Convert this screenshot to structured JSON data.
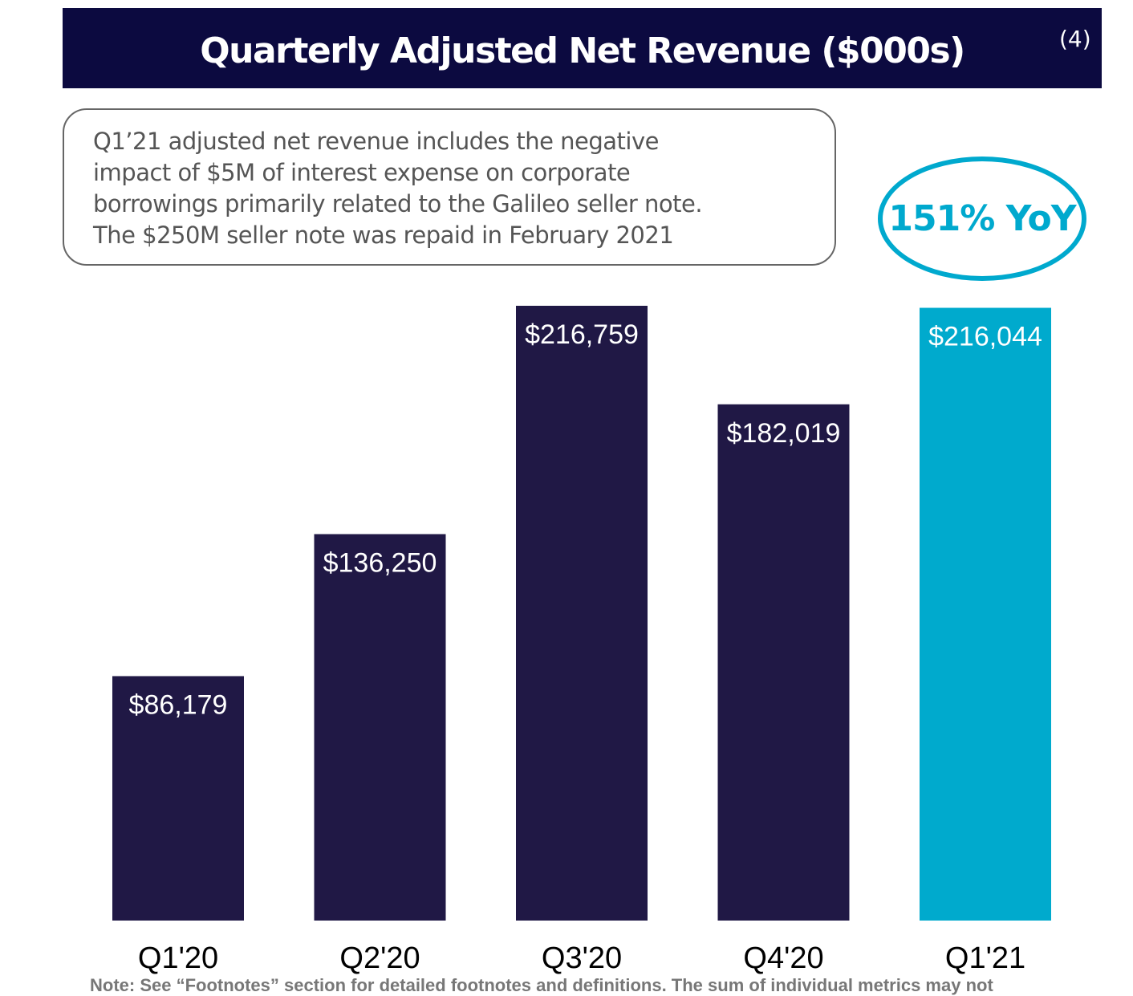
{
  "header": {
    "title": "Quarterly Adjusted Net Revenue ($000s)",
    "superscript": "(4)"
  },
  "callout": {
    "lines": [
      "Q1’21 adjusted net revenue includes the negative",
      "impact of $5M of interest expense on corporate",
      "borrowings primarily related to the Galileo seller note.",
      "The $250M seller note was repaid in February 2021"
    ]
  },
  "badge": {
    "text": "151% YoY",
    "color": "#00a9ce"
  },
  "footnote": "Note: See “Footnotes” section for detailed footnotes and definitions. The sum of individual metrics may not",
  "chart_data": {
    "type": "bar",
    "title": "Quarterly Adjusted Net Revenue ($000s)",
    "categories": [
      "Q1'20",
      "Q2'20",
      "Q3'20",
      "Q4'20",
      "Q1'21"
    ],
    "values": [
      86179,
      136250,
      216759,
      182019,
      216044
    ],
    "data_labels": [
      "$86,179",
      "$136,250",
      "$216,759",
      "$182,019",
      "$216,044"
    ],
    "colors": [
      "#201845",
      "#201845",
      "#201845",
      "#201845",
      "#00aacd"
    ],
    "ylim": [
      0,
      216759
    ],
    "grid": false,
    "axes_visible": false
  }
}
